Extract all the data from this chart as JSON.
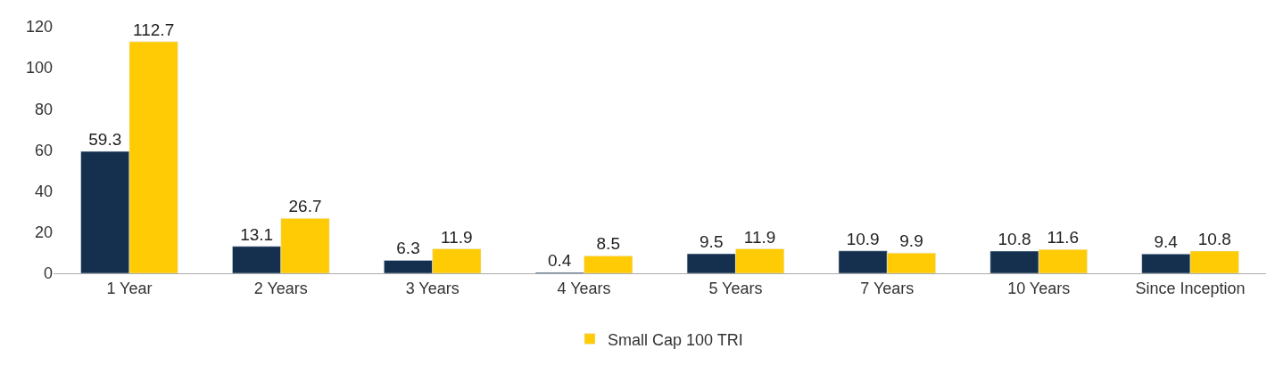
{
  "chart_data": {
    "type": "bar",
    "categories": [
      "1 Year",
      "2 Years",
      "3 Years",
      "4 Years",
      "5 Years",
      "7 Years",
      "10 Years",
      "Since Inception"
    ],
    "series": [
      {
        "color": "#14304e",
        "values": [
          59.3,
          13.1,
          6.3,
          0.4,
          9.5,
          10.9,
          10.8,
          9.4
        ]
      },
      {
        "name": "Small Cap 100 TRI",
        "color": "#ffcb05",
        "values": [
          112.7,
          26.7,
          11.9,
          8.5,
          11.9,
          9.9,
          11.6,
          10.8
        ]
      }
    ],
    "ylim": [
      0,
      120
    ],
    "yticks": [
      0,
      20,
      40,
      60,
      80,
      100,
      120
    ],
    "data_labels": true,
    "legend": "bottom"
  }
}
